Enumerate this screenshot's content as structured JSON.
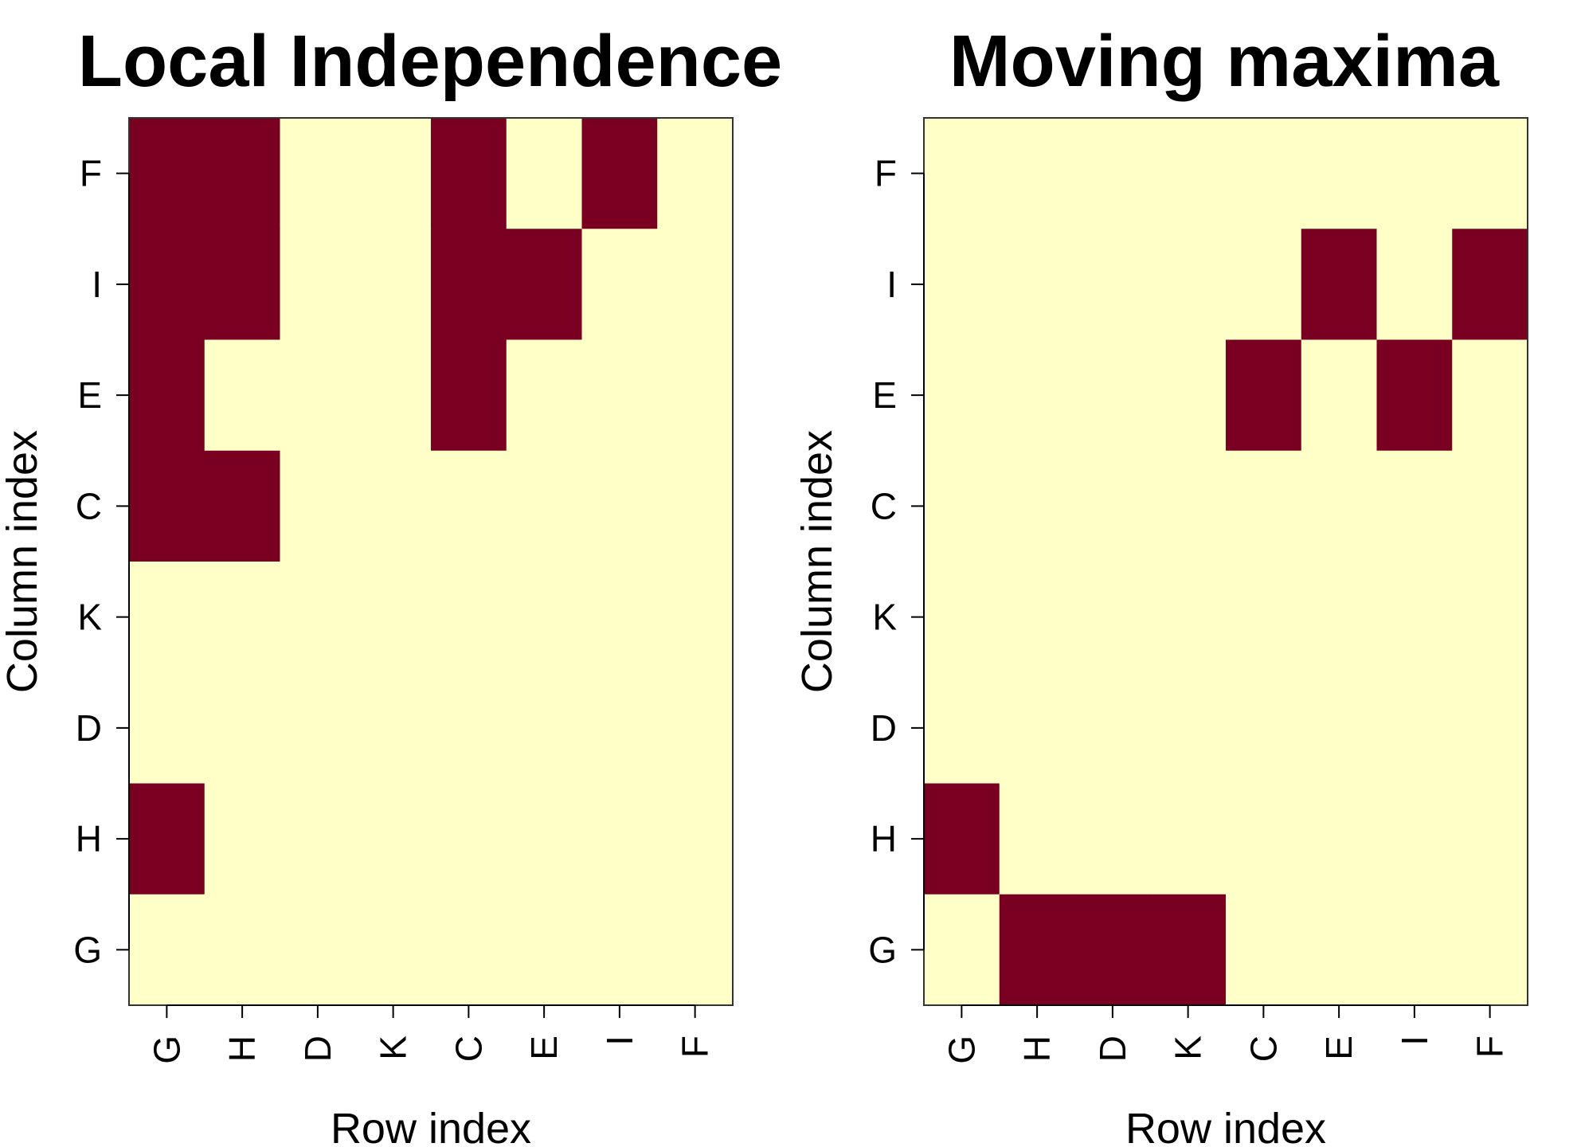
{
  "chart_data": [
    {
      "type": "heatmap",
      "title": "Local Independence",
      "xlabel": "Row index",
      "ylabel": "Column index",
      "x_categories": [
        "G",
        "H",
        "D",
        "K",
        "C",
        "E",
        "I",
        "F"
      ],
      "y_categories": [
        "G",
        "H",
        "D",
        "K",
        "C",
        "E",
        "I",
        "F"
      ],
      "low_color": "#FFFFC8",
      "high_color": "#7A0022",
      "matrix_rows_top_to_bottom": [
        "F",
        "I",
        "E",
        "C",
        "K",
        "D",
        "H",
        "G"
      ],
      "matrix": [
        [
          1,
          1,
          0,
          0,
          1,
          0,
          1,
          0
        ],
        [
          1,
          1,
          0,
          0,
          1,
          1,
          0,
          0
        ],
        [
          1,
          0,
          0,
          0,
          1,
          0,
          0,
          0
        ],
        [
          1,
          1,
          0,
          0,
          0,
          0,
          0,
          0
        ],
        [
          0,
          0,
          0,
          0,
          0,
          0,
          0,
          0
        ],
        [
          0,
          0,
          0,
          0,
          0,
          0,
          0,
          0
        ],
        [
          1,
          0,
          0,
          0,
          0,
          0,
          0,
          0
        ],
        [
          0,
          0,
          0,
          0,
          0,
          0,
          0,
          0
        ]
      ]
    },
    {
      "type": "heatmap",
      "title": "Moving maxima",
      "xlabel": "Row index",
      "ylabel": "Column index",
      "x_categories": [
        "G",
        "H",
        "D",
        "K",
        "C",
        "E",
        "I",
        "F"
      ],
      "y_categories": [
        "G",
        "H",
        "D",
        "K",
        "C",
        "E",
        "I",
        "F"
      ],
      "low_color": "#FFFFC8",
      "high_color": "#7A0022",
      "matrix_rows_top_to_bottom": [
        "F",
        "I",
        "E",
        "C",
        "K",
        "D",
        "H",
        "G"
      ],
      "matrix": [
        [
          0,
          0,
          0,
          0,
          0,
          0,
          0,
          0
        ],
        [
          0,
          0,
          0,
          0,
          0,
          1,
          0,
          1
        ],
        [
          0,
          0,
          0,
          0,
          1,
          0,
          1,
          0
        ],
        [
          0,
          0,
          0,
          0,
          0,
          0,
          0,
          0
        ],
        [
          0,
          0,
          0,
          0,
          0,
          0,
          0,
          0
        ],
        [
          0,
          0,
          0,
          0,
          0,
          0,
          0,
          0
        ],
        [
          1,
          0,
          0,
          0,
          0,
          0,
          0,
          0
        ],
        [
          0,
          1,
          1,
          1,
          0,
          0,
          0,
          0
        ]
      ]
    }
  ]
}
